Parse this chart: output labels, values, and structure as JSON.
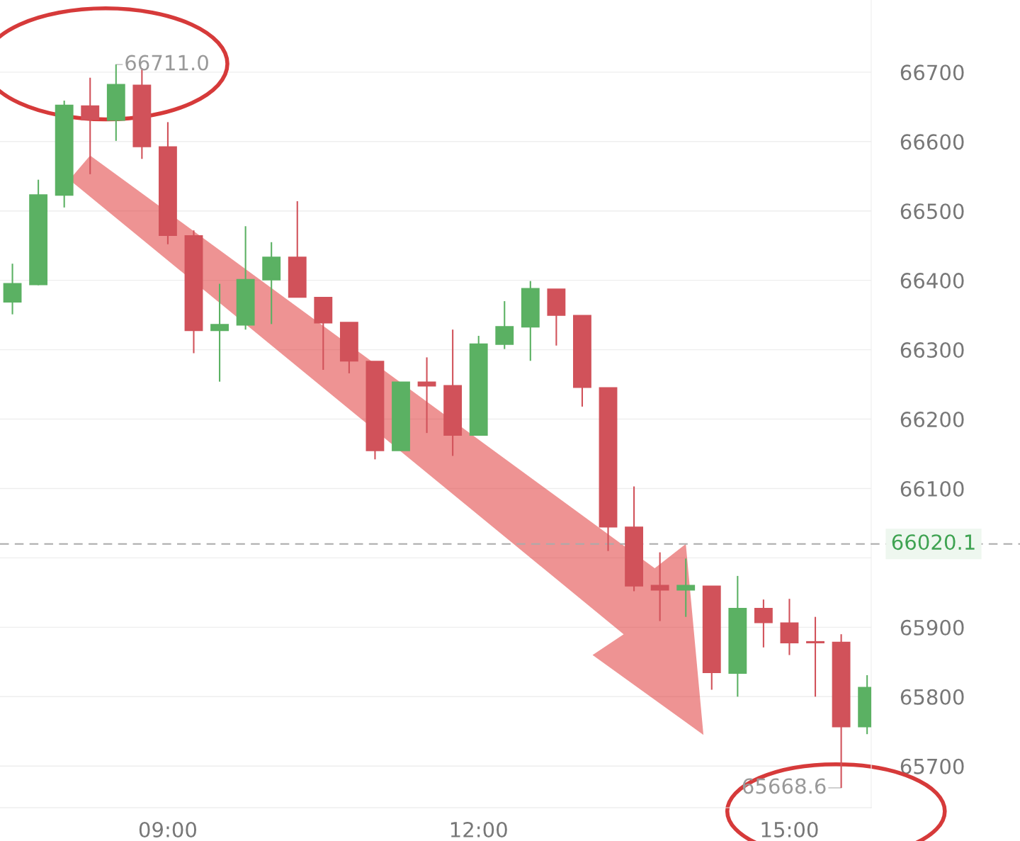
{
  "chart_data": {
    "type": "candlestick",
    "x": [
      7.5,
      7.75,
      8,
      8.25,
      8.5,
      8.75,
      9,
      9.25,
      9.5,
      9.75,
      10,
      10.25,
      10.5,
      10.75,
      11,
      11.25,
      11.5,
      11.75,
      12,
      12.25,
      12.5,
      12.75,
      13,
      13.25,
      13.5,
      13.75,
      14,
      14.25,
      14.5,
      14.75,
      15,
      15.25,
      15.5,
      15.75
    ],
    "ohlc": [
      [
        66369,
        66424,
        66351,
        66395
      ],
      [
        66394,
        66545,
        66393,
        66523
      ],
      [
        66523,
        66659,
        66505,
        66652
      ],
      [
        66651,
        66692,
        66553,
        66632
      ],
      [
        66631,
        66711.0,
        66601,
        66682
      ],
      [
        66681,
        66706,
        66575,
        66593
      ],
      [
        66592,
        66628,
        66452,
        66465
      ],
      [
        66464,
        66472,
        66295,
        66328
      ],
      [
        66328,
        66395,
        66254,
        66336
      ],
      [
        66336,
        66478,
        66329,
        66401
      ],
      [
        66401,
        66455,
        66337,
        66433
      ],
      [
        66433,
        66514,
        66376,
        66376
      ],
      [
        66375,
        66375,
        66271,
        66339
      ],
      [
        66339,
        66339,
        66266,
        66284
      ],
      [
        66283,
        66283,
        66142,
        66155
      ],
      [
        66155,
        66253,
        66155,
        66253
      ],
      [
        66253,
        66289,
        66180,
        66248
      ],
      [
        66248,
        66329,
        66147,
        66177
      ],
      [
        66177,
        66320,
        66177,
        66308
      ],
      [
        66308,
        66370,
        66301,
        66333
      ],
      [
        66333,
        66399,
        66284,
        66388
      ],
      [
        66387,
        66387,
        66306,
        66350
      ],
      [
        66349,
        66349,
        66218,
        66246
      ],
      [
        66245,
        66245,
        66010,
        66045
      ],
      [
        66044,
        66103,
        65952,
        65960
      ],
      [
        65960,
        66008,
        65909,
        65954
      ],
      [
        65954,
        65999,
        65915,
        65960
      ],
      [
        65959,
        65959,
        65810,
        65835
      ],
      [
        65834,
        65974,
        65800,
        65927
      ],
      [
        65927,
        65940,
        65871,
        65907
      ],
      [
        65906,
        65941,
        65860,
        65878
      ],
      [
        65879,
        65915,
        65800,
        65878
      ],
      [
        65878,
        65890,
        65668.6,
        65757
      ],
      [
        65757,
        65831,
        65746,
        65813
      ]
    ],
    "colors": [
      "#5bb163",
      "#5bb163",
      "#5bb163",
      "#d1525a",
      "#5bb163",
      "#d1525a",
      "#d1525a",
      "#d1525a",
      "#5bb163",
      "#5bb163",
      "#5bb163",
      "#d1525a",
      "#d1525a",
      "#d1525a",
      "#d1525a",
      "#5bb163",
      "#d1525a",
      "#d1525a",
      "#5bb163",
      "#5bb163",
      "#5bb163",
      "#d1525a",
      "#d1525a",
      "#d1525a",
      "#d1525a",
      "#d1525a",
      "#5bb163",
      "#d1525a",
      "#5bb163",
      "#d1525a",
      "#d1525a",
      "#d1525a",
      "#d1525a",
      "#5bb163"
    ],
    "xlim": [
      7.38,
      15.79
    ],
    "xticks": [
      {
        "value": 9,
        "label": "09:00"
      },
      {
        "value": 12,
        "label": "12:00"
      },
      {
        "value": 15,
        "label": "15:00"
      }
    ],
    "ylim": [
      65640,
      66804
    ],
    "yticks": [
      65700,
      65800,
      65900,
      {
        "value": 66000,
        "label": null
      },
      66100,
      66200,
      66300,
      66400,
      66500,
      66600,
      66700
    ],
    "grid": "y",
    "ref_lines": [
      {
        "axis": "y",
        "value": 66020.1,
        "label": "66020.1",
        "color": "#aaaaaa",
        "line_style": "dashed"
      }
    ],
    "annotations": [
      {
        "text": "66711.0",
        "x": 8.5,
        "y": 66711.0
      },
      {
        "text": "65668.6",
        "x": 15.5,
        "y": 65668.6
      }
    ]
  }
}
